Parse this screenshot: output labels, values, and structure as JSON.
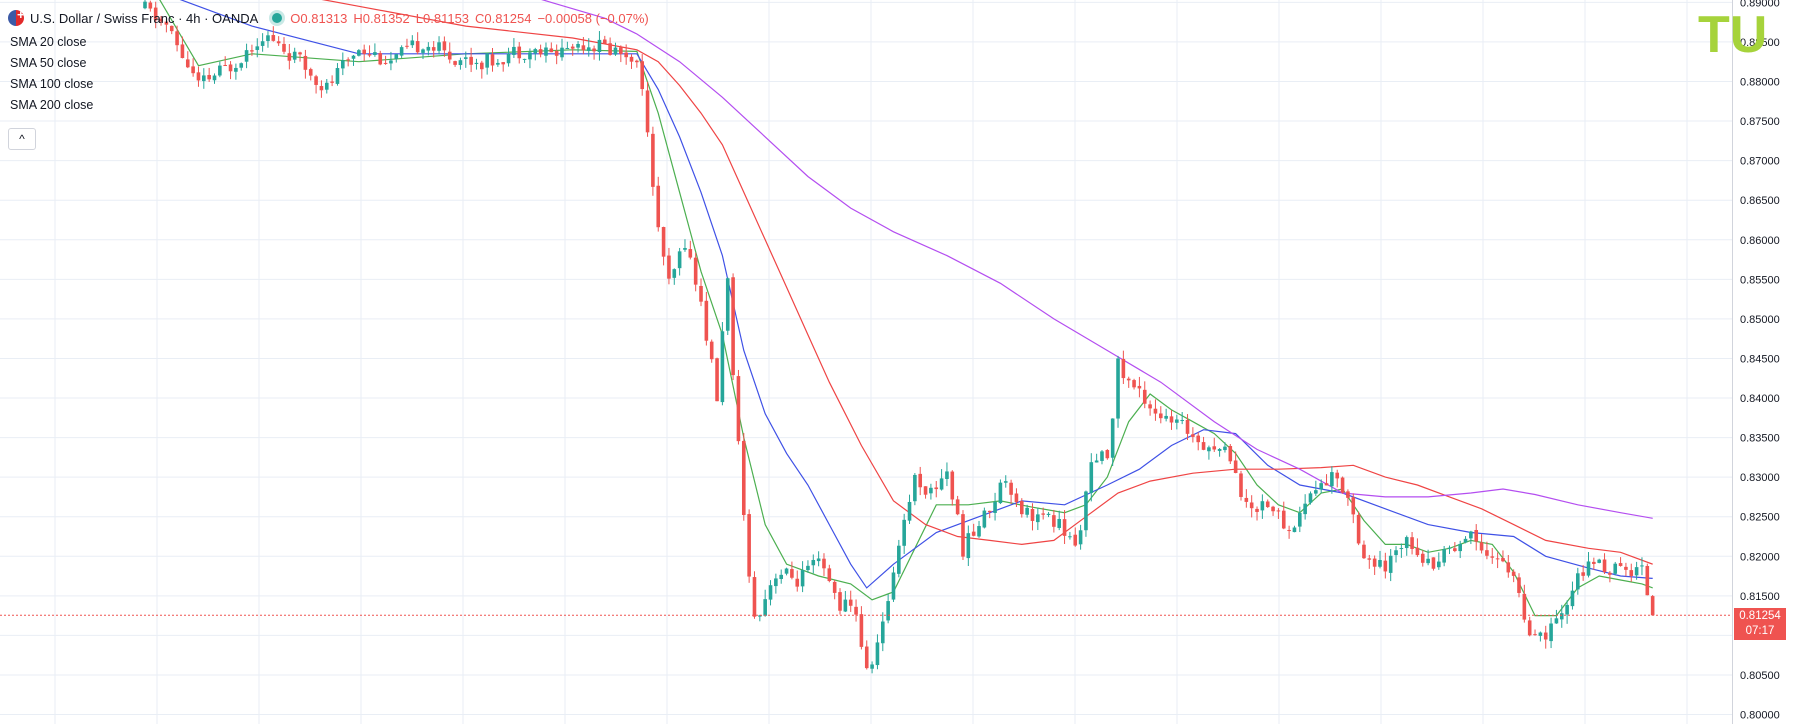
{
  "header": {
    "symbol_title": "U.S. Dollar / Swiss Franc · 4h · OANDA",
    "open": "O0.81313",
    "high": "H0.81352",
    "low": "L0.81153",
    "close": "C0.81254",
    "change": "−0.00058 (−0.07%)"
  },
  "indicators": [
    {
      "label": "SMA 20 close",
      "color": "#4caf50"
    },
    {
      "label": "SMA 50 close",
      "color": "#3f51e6"
    },
    {
      "label": "SMA 100 close",
      "color": "#ef4444"
    },
    {
      "label": "SMA 200 close",
      "color": "#b44ef0"
    }
  ],
  "collapse_label": "^",
  "price_tag": {
    "price": "0.81254",
    "countdown": "07:17"
  },
  "logo_text": "TU",
  "colors": {
    "up": "#26a69a",
    "down": "#ef5350",
    "grid": "#e9eef5",
    "axis_text": "#131722"
  },
  "chart_data": {
    "type": "candlestick",
    "ylim": [
      0.7988,
      0.8903
    ],
    "y_ticks": [
      "0.80000",
      "0.80500",
      "0.81000",
      "0.81500",
      "0.82000",
      "0.82500",
      "0.83000",
      "0.83500",
      "0.84000",
      "0.84500",
      "0.85000",
      "0.85500",
      "0.86000",
      "0.86500",
      "0.87000",
      "0.87500",
      "0.88000",
      "0.88500",
      "0.89000"
    ],
    "last_price": 0.81254,
    "price_path": [
      [
        0,
        0.8892
      ],
      [
        4,
        0.887
      ],
      [
        10,
        0.8795
      ],
      [
        16,
        0.882
      ],
      [
        22,
        0.886
      ],
      [
        28,
        0.883
      ],
      [
        34,
        0.8792
      ],
      [
        40,
        0.8845
      ],
      [
        46,
        0.8825
      ],
      [
        52,
        0.885
      ],
      [
        58,
        0.883
      ],
      [
        64,
        0.8825
      ],
      [
        70,
        0.884
      ],
      [
        76,
        0.8835
      ],
      [
        82,
        0.885
      ],
      [
        88,
        0.884
      ],
      [
        91,
        0.8835
      ],
      [
        93,
        0.88
      ],
      [
        95,
        0.866
      ],
      [
        98,
        0.854
      ],
      [
        101,
        0.86
      ],
      [
        104,
        0.852
      ],
      [
        107,
        0.84
      ],
      [
        109,
        0.856
      ],
      [
        110,
        0.842
      ],
      [
        112,
        0.825
      ],
      [
        114,
        0.812
      ],
      [
        118,
        0.818
      ],
      [
        122,
        0.817
      ],
      [
        126,
        0.819
      ],
      [
        130,
        0.814
      ],
      [
        133,
        0.813
      ],
      [
        135,
        0.805
      ],
      [
        138,
        0.811
      ],
      [
        141,
        0.822
      ],
      [
        144,
        0.83
      ],
      [
        147,
        0.828
      ],
      [
        150,
        0.831
      ],
      [
        153,
        0.821
      ],
      [
        157,
        0.825
      ],
      [
        161,
        0.83
      ],
      [
        164,
        0.826
      ],
      [
        167,
        0.825
      ],
      [
        171,
        0.824
      ],
      [
        174,
        0.821
      ],
      [
        177,
        0.831
      ],
      [
        180,
        0.833
      ],
      [
        182,
        0.844
      ],
      [
        184,
        0.842
      ],
      [
        187,
        0.84
      ],
      [
        191,
        0.837
      ],
      [
        195,
        0.836
      ],
      [
        199,
        0.834
      ],
      [
        203,
        0.833
      ],
      [
        206,
        0.826
      ],
      [
        210,
        0.827
      ],
      [
        214,
        0.823
      ],
      [
        218,
        0.828
      ],
      [
        222,
        0.83
      ],
      [
        225,
        0.828
      ],
      [
        228,
        0.82
      ],
      [
        232,
        0.818
      ],
      [
        236,
        0.823
      ],
      [
        240,
        0.819
      ],
      [
        244,
        0.821
      ],
      [
        248,
        0.823
      ],
      [
        252,
        0.82
      ],
      [
        256,
        0.818
      ],
      [
        259,
        0.809
      ],
      [
        262,
        0.81
      ],
      [
        265,
        0.812
      ],
      [
        268,
        0.818
      ],
      [
        272,
        0.819
      ],
      [
        276,
        0.818
      ],
      [
        280,
        0.8185
      ],
      [
        282,
        0.8125
      ]
    ],
    "sma_lines": [
      {
        "name": "SMA 20",
        "color": "#4caf50",
        "points": [
          [
            0,
            0.8935
          ],
          [
            10,
            0.882
          ],
          [
            20,
            0.8835
          ],
          [
            40,
            0.8825
          ],
          [
            60,
            0.8835
          ],
          [
            80,
            0.884
          ],
          [
            92,
            0.8838
          ],
          [
            96,
            0.876
          ],
          [
            100,
            0.866
          ],
          [
            104,
            0.856
          ],
          [
            108,
            0.848
          ],
          [
            112,
            0.835
          ],
          [
            116,
            0.824
          ],
          [
            120,
            0.819
          ],
          [
            126,
            0.8175
          ],
          [
            132,
            0.8165
          ],
          [
            136,
            0.8145
          ],
          [
            140,
            0.8155
          ],
          [
            144,
            0.821
          ],
          [
            148,
            0.8265
          ],
          [
            154,
            0.8265
          ],
          [
            160,
            0.827
          ],
          [
            166,
            0.8262
          ],
          [
            172,
            0.8255
          ],
          [
            176,
            0.8265
          ],
          [
            180,
            0.83
          ],
          [
            184,
            0.837
          ],
          [
            188,
            0.8405
          ],
          [
            192,
            0.8385
          ],
          [
            196,
            0.837
          ],
          [
            200,
            0.8355
          ],
          [
            204,
            0.833
          ],
          [
            208,
            0.829
          ],
          [
            212,
            0.8265
          ],
          [
            216,
            0.8255
          ],
          [
            220,
            0.828
          ],
          [
            224,
            0.8285
          ],
          [
            228,
            0.8245
          ],
          [
            232,
            0.8215
          ],
          [
            236,
            0.8215
          ],
          [
            240,
            0.8205
          ],
          [
            244,
            0.821
          ],
          [
            248,
            0.822
          ],
          [
            252,
            0.8215
          ],
          [
            256,
            0.818
          ],
          [
            260,
            0.8125
          ],
          [
            264,
            0.8125
          ],
          [
            268,
            0.816
          ],
          [
            272,
            0.8175
          ],
          [
            276,
            0.817
          ],
          [
            280,
            0.8165
          ],
          [
            282,
            0.816
          ]
        ]
      },
      {
        "name": "SMA 50",
        "color": "#3f51e6",
        "points": [
          [
            0,
            0.892
          ],
          [
            20,
            0.887
          ],
          [
            40,
            0.8835
          ],
          [
            60,
            0.8835
          ],
          [
            80,
            0.8835
          ],
          [
            92,
            0.8835
          ],
          [
            96,
            0.879
          ],
          [
            100,
            0.873
          ],
          [
            104,
            0.866
          ],
          [
            108,
            0.858
          ],
          [
            112,
            0.846
          ],
          [
            116,
            0.838
          ],
          [
            120,
            0.833
          ],
          [
            124,
            0.829
          ],
          [
            128,
            0.824
          ],
          [
            132,
            0.819
          ],
          [
            135,
            0.816
          ],
          [
            140,
            0.819
          ],
          [
            148,
            0.823
          ],
          [
            156,
            0.825
          ],
          [
            164,
            0.827
          ],
          [
            172,
            0.8265
          ],
          [
            180,
            0.829
          ],
          [
            186,
            0.831
          ],
          [
            192,
            0.834
          ],
          [
            198,
            0.836
          ],
          [
            204,
            0.8355
          ],
          [
            210,
            0.8315
          ],
          [
            216,
            0.829
          ],
          [
            224,
            0.828
          ],
          [
            232,
            0.826
          ],
          [
            240,
            0.824
          ],
          [
            248,
            0.823
          ],
          [
            256,
            0.8225
          ],
          [
            262,
            0.82
          ],
          [
            270,
            0.8185
          ],
          [
            276,
            0.8175
          ],
          [
            282,
            0.8172
          ]
        ]
      },
      {
        "name": "SMA 100",
        "color": "#ef4444",
        "points": [
          [
            0,
            0.8935
          ],
          [
            20,
            0.892
          ],
          [
            40,
            0.8895
          ],
          [
            60,
            0.887
          ],
          [
            80,
            0.8855
          ],
          [
            92,
            0.884
          ],
          [
            96,
            0.8825
          ],
          [
            100,
            0.8795
          ],
          [
            104,
            0.876
          ],
          [
            108,
            0.872
          ],
          [
            112,
            0.866
          ],
          [
            116,
            0.86
          ],
          [
            120,
            0.854
          ],
          [
            124,
            0.848
          ],
          [
            128,
            0.842
          ],
          [
            134,
            0.834
          ],
          [
            140,
            0.827
          ],
          [
            146,
            0.824
          ],
          [
            152,
            0.8225
          ],
          [
            158,
            0.822
          ],
          [
            164,
            0.8215
          ],
          [
            170,
            0.822
          ],
          [
            176,
            0.825
          ],
          [
            182,
            0.828
          ],
          [
            188,
            0.8295
          ],
          [
            196,
            0.8305
          ],
          [
            204,
            0.831
          ],
          [
            212,
            0.831
          ],
          [
            220,
            0.8312
          ],
          [
            226,
            0.8315
          ],
          [
            232,
            0.83
          ],
          [
            238,
            0.829
          ],
          [
            244,
            0.8275
          ],
          [
            250,
            0.826
          ],
          [
            256,
            0.824
          ],
          [
            262,
            0.822
          ],
          [
            270,
            0.821
          ],
          [
            276,
            0.8205
          ],
          [
            282,
            0.819
          ]
        ]
      },
      {
        "name": "SMA 200",
        "color": "#b44ef0",
        "points": [
          [
            0,
            0.8935
          ],
          [
            40,
            0.892
          ],
          [
            66,
            0.892
          ],
          [
            76,
            0.89
          ],
          [
            86,
            0.888
          ],
          [
            92,
            0.886
          ],
          [
            100,
            0.8825
          ],
          [
            108,
            0.878
          ],
          [
            116,
            0.873
          ],
          [
            124,
            0.868
          ],
          [
            132,
            0.864
          ],
          [
            140,
            0.861
          ],
          [
            150,
            0.858
          ],
          [
            160,
            0.8545
          ],
          [
            170,
            0.85
          ],
          [
            180,
            0.846
          ],
          [
            190,
            0.842
          ],
          [
            200,
            0.837
          ],
          [
            208,
            0.8335
          ],
          [
            216,
            0.831
          ],
          [
            224,
            0.828
          ],
          [
            232,
            0.8275
          ],
          [
            240,
            0.8275
          ],
          [
            248,
            0.828
          ],
          [
            254,
            0.8285
          ],
          [
            260,
            0.8278
          ],
          [
            268,
            0.8265
          ],
          [
            276,
            0.8255
          ],
          [
            282,
            0.8248
          ]
        ]
      }
    ]
  }
}
